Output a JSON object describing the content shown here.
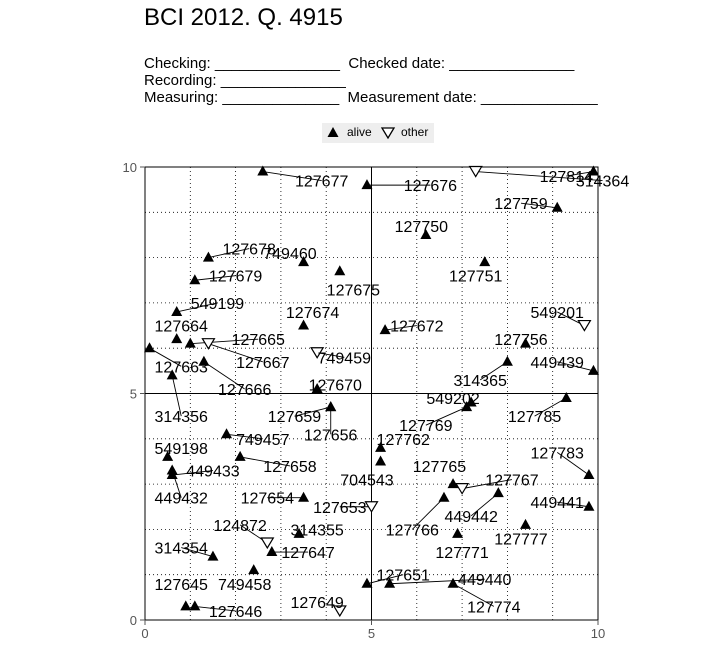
{
  "header": {
    "title": "BCI 2012. Q. 4915",
    "checking": "Checking: _______________",
    "checked_date": "Checked date: _______________",
    "recording": "Recording: _______________",
    "measuring": "Measuring: ______________",
    "measurement_date": "Measurement date: ______________"
  },
  "legend": {
    "alive_label": "alive",
    "other_label": "other"
  },
  "chart_data": {
    "type": "scatter",
    "xlim": [
      0,
      10
    ],
    "ylim": [
      0,
      10
    ],
    "x_ticks": [
      "0",
      "5",
      "10"
    ],
    "y_ticks": [
      "0",
      "5",
      "10"
    ],
    "grid": "dotted every 1 unit, solid at 5",
    "legend_position": "top-center",
    "points": [
      {
        "tag": "127677",
        "x": 2.6,
        "y": 9.9,
        "status": "alive",
        "lx": 3.9,
        "ly": 9.7
      },
      {
        "tag": "127676",
        "x": 4.9,
        "y": 9.6,
        "status": "alive",
        "lx": 6.3,
        "ly": 9.6
      },
      {
        "tag": "314364",
        "x": 7.3,
        "y": 9.9,
        "status": "other",
        "lx": 10.1,
        "ly": 9.7
      },
      {
        "tag": "127814",
        "x": 9.9,
        "y": 9.9,
        "status": "alive",
        "lx": 9.3,
        "ly": 9.8
      },
      {
        "tag": "127759",
        "x": 9.1,
        "y": 9.1,
        "status": "alive",
        "lx": 8.3,
        "ly": 9.2
      },
      {
        "tag": "127750",
        "x": 6.2,
        "y": 8.5,
        "status": "alive",
        "lx": 6.1,
        "ly": 8.7
      },
      {
        "tag": "127678",
        "x": 1.4,
        "y": 8.0,
        "status": "alive",
        "lx": 2.3,
        "ly": 8.2
      },
      {
        "tag": "749460",
        "x": 3.5,
        "y": 7.9,
        "status": "alive",
        "lx": 3.2,
        "ly": 8.1
      },
      {
        "tag": "127751",
        "x": 7.5,
        "y": 7.9,
        "status": "alive",
        "lx": 7.3,
        "ly": 7.6
      },
      {
        "tag": "127679",
        "x": 1.1,
        "y": 7.5,
        "status": "alive",
        "lx": 2.0,
        "ly": 7.6
      },
      {
        "tag": "127675",
        "x": 4.3,
        "y": 7.7,
        "status": "alive",
        "lx": 4.6,
        "ly": 7.3
      },
      {
        "tag": "549199",
        "x": 0.7,
        "y": 6.8,
        "status": "alive",
        "lx": 1.6,
        "ly": 7.0
      },
      {
        "tag": "127674",
        "x": 3.5,
        "y": 6.5,
        "status": "alive",
        "lx": 3.7,
        "ly": 6.8
      },
      {
        "tag": "549201",
        "x": 9.7,
        "y": 6.5,
        "status": "other",
        "lx": 9.1,
        "ly": 6.8
      },
      {
        "tag": "127664",
        "x": 0.7,
        "y": 6.2,
        "status": "alive",
        "lx": 0.8,
        "ly": 6.5
      },
      {
        "tag": "127672",
        "x": 5.3,
        "y": 6.4,
        "status": "alive",
        "lx": 6.0,
        "ly": 6.5
      },
      {
        "tag": "127665",
        "x": 1.0,
        "y": 6.1,
        "status": "alive",
        "lx": 2.5,
        "ly": 6.2
      },
      {
        "tag": "127756",
        "x": 8.4,
        "y": 6.1,
        "status": "alive",
        "lx": 8.3,
        "ly": 6.2
      },
      {
        "tag": "127663",
        "x": 0.1,
        "y": 6.0,
        "status": "alive",
        "lx": 0.8,
        "ly": 5.6
      },
      {
        "tag": "127667",
        "x": 1.4,
        "y": 6.1,
        "status": "other",
        "lx": 2.6,
        "ly": 5.7
      },
      {
        "tag": "749459",
        "x": 3.8,
        "y": 5.9,
        "status": "other",
        "lx": 4.4,
        "ly": 5.8
      },
      {
        "tag": "449439",
        "x": 9.9,
        "y": 5.5,
        "status": "alive",
        "lx": 9.1,
        "ly": 5.7
      },
      {
        "tag": "314365",
        "x": 8.0,
        "y": 5.7,
        "status": "alive",
        "lx": 7.4,
        "ly": 5.3
      },
      {
        "tag": "127666",
        "x": 1.3,
        "y": 5.7,
        "status": "alive",
        "lx": 2.2,
        "ly": 5.1
      },
      {
        "tag": "127670",
        "x": 3.8,
        "y": 5.1,
        "status": "alive",
        "lx": 4.2,
        "ly": 5.2
      },
      {
        "tag": "314356",
        "x": 0.6,
        "y": 5.4,
        "status": "alive",
        "lx": 0.8,
        "ly": 4.5
      },
      {
        "tag": "549202",
        "x": 7.2,
        "y": 4.8,
        "status": "alive",
        "lx": 6.8,
        "ly": 4.9
      },
      {
        "tag": "127785",
        "x": 9.3,
        "y": 4.9,
        "status": "alive",
        "lx": 8.6,
        "ly": 4.5
      },
      {
        "tag": "127659",
        "x": 4.1,
        "y": 4.7,
        "status": "alive",
        "lx": 3.3,
        "ly": 4.5
      },
      {
        "tag": "127769",
        "x": 7.1,
        "y": 4.7,
        "status": "alive",
        "lx": 6.2,
        "ly": 4.3
      },
      {
        "tag": "749457",
        "x": 1.8,
        "y": 4.1,
        "status": "alive",
        "lx": 2.6,
        "ly": 4.0
      },
      {
        "tag": "127656",
        "x": 4.1,
        "y": 4.7,
        "status": "alive",
        "lx": 4.1,
        "ly": 4.1
      },
      {
        "tag": "127762",
        "x": 5.2,
        "y": 3.8,
        "status": "alive",
        "lx": 5.7,
        "ly": 4.0
      },
      {
        "tag": "549198",
        "x": 0.5,
        "y": 3.6,
        "status": "alive",
        "lx": 0.8,
        "ly": 3.8
      },
      {
        "tag": "127783",
        "x": 9.8,
        "y": 3.2,
        "status": "alive",
        "lx": 9.1,
        "ly": 3.7
      },
      {
        "tag": "127658",
        "x": 2.1,
        "y": 3.6,
        "status": "alive",
        "lx": 3.2,
        "ly": 3.4
      },
      {
        "tag": "449433",
        "x": 0.6,
        "y": 3.2,
        "status": "alive",
        "lx": 1.5,
        "ly": 3.3
      },
      {
        "tag": "127765",
        "x": 6.8,
        "y": 3.0,
        "status": "alive",
        "lx": 6.5,
        "ly": 3.4
      },
      {
        "tag": "704543",
        "x": 5.2,
        "y": 3.5,
        "status": "alive",
        "lx": 4.9,
        "ly": 3.1
      },
      {
        "tag": "127767",
        "x": 7.0,
        "y": 2.9,
        "status": "other",
        "lx": 8.1,
        "ly": 3.1
      },
      {
        "tag": "449432",
        "x": 0.6,
        "y": 3.3,
        "status": "alive",
        "lx": 0.8,
        "ly": 2.7
      },
      {
        "tag": "127654",
        "x": 3.5,
        "y": 2.7,
        "status": "alive",
        "lx": 2.7,
        "ly": 2.7
      },
      {
        "tag": "127653",
        "x": 5.0,
        "y": 2.5,
        "status": "other",
        "lx": 4.3,
        "ly": 2.5
      },
      {
        "tag": "449441",
        "x": 9.8,
        "y": 2.5,
        "status": "alive",
        "lx": 9.1,
        "ly": 2.6
      },
      {
        "tag": "449442",
        "x": 7.8,
        "y": 2.8,
        "status": "alive",
        "lx": 7.2,
        "ly": 2.3
      },
      {
        "tag": "127766",
        "x": 6.6,
        "y": 2.7,
        "status": "alive",
        "lx": 5.9,
        "ly": 2.0
      },
      {
        "tag": "124872",
        "x": 2.7,
        "y": 1.7,
        "status": "other",
        "lx": 2.1,
        "ly": 2.1
      },
      {
        "tag": "314355",
        "x": 3.4,
        "y": 1.9,
        "status": "alive",
        "lx": 3.8,
        "ly": 2.0
      },
      {
        "tag": "127777",
        "x": 8.4,
        "y": 2.1,
        "status": "alive",
        "lx": 8.3,
        "ly": 1.8
      },
      {
        "tag": "127771",
        "x": 6.9,
        "y": 1.9,
        "status": "alive",
        "lx": 7.0,
        "ly": 1.5
      },
      {
        "tag": "314354",
        "x": 1.5,
        "y": 1.4,
        "status": "alive",
        "lx": 0.8,
        "ly": 1.6
      },
      {
        "tag": "127647",
        "x": 2.8,
        "y": 1.5,
        "status": "alive",
        "lx": 3.6,
        "ly": 1.5
      },
      {
        "tag": "127651",
        "x": 4.9,
        "y": 0.8,
        "status": "alive",
        "lx": 5.7,
        "ly": 1.0
      },
      {
        "tag": "449440",
        "x": 5.4,
        "y": 0.8,
        "status": "alive",
        "lx": 7.5,
        "ly": 0.9
      },
      {
        "tag": "749458",
        "x": 2.4,
        "y": 1.1,
        "status": "alive",
        "lx": 2.2,
        "ly": 0.8
      },
      {
        "tag": "127645",
        "x": 0.9,
        "y": 0.3,
        "status": "alive",
        "lx": 0.8,
        "ly": 0.8
      },
      {
        "tag": "127774",
        "x": 6.8,
        "y": 0.8,
        "status": "alive",
        "lx": 7.7,
        "ly": 0.3
      },
      {
        "tag": "127649",
        "x": 4.3,
        "y": 0.2,
        "status": "other",
        "lx": 3.8,
        "ly": 0.4
      },
      {
        "tag": "127646",
        "x": 1.1,
        "y": 0.3,
        "status": "alive",
        "lx": 2.0,
        "ly": 0.2
      }
    ]
  }
}
